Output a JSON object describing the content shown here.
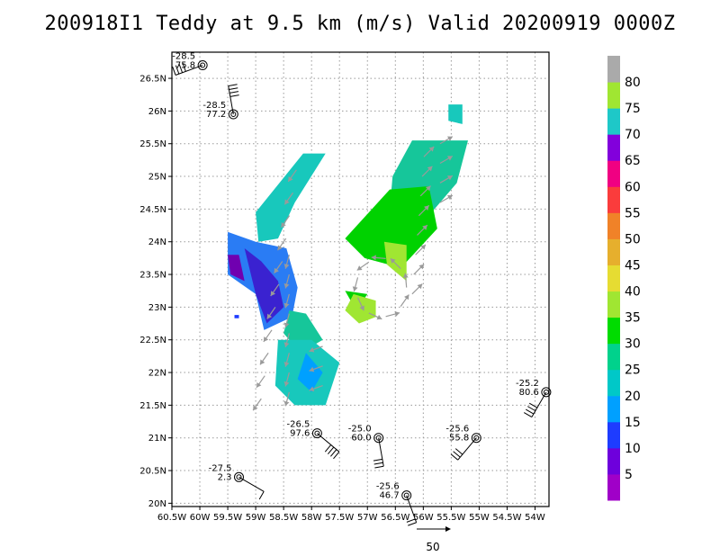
{
  "title": "200918I1 Teddy at 9.5 km (m/s) Valid 20200919 0000Z",
  "chart_data": {
    "type": "wind-vector-map",
    "xlim": [
      -60.5,
      -53.75
    ],
    "ylim": [
      19.95,
      26.9
    ],
    "x_ticks": [
      -60.5,
      -60,
      -59.5,
      -59,
      -58.5,
      -58,
      -57.5,
      -57,
      -56.5,
      -56,
      -55.5,
      -55,
      -54.5,
      -54
    ],
    "x_tick_labels": [
      "60.5W",
      "60W",
      "59.5W",
      "59W",
      "58.5W",
      "58W",
      "57.5W",
      "57W",
      "56.5W",
      "56W",
      "55.5W",
      "55W",
      "54.5W",
      "54W"
    ],
    "y_ticks": [
      20,
      20.5,
      21,
      21.5,
      22,
      22.5,
      23,
      23.5,
      24,
      24.5,
      25,
      25.5,
      26,
      26.5
    ],
    "y_tick_labels": [
      "20N",
      "20.5N",
      "21N",
      "21.5N",
      "22N",
      "22.5N",
      "23N",
      "23.5N",
      "24N",
      "24.5N",
      "25N",
      "25.5N",
      "26N",
      "26.5N"
    ],
    "grid": true,
    "colorbar": {
      "labels": [
        "5",
        "10",
        "15",
        "20",
        "25",
        "30",
        "35",
        "40",
        "45",
        "50",
        "55",
        "60",
        "65",
        "70",
        "75",
        "80"
      ],
      "colors": [
        "#a000c8",
        "#6e00dc",
        "#1e3cff",
        "#00a0ff",
        "#00c8c8",
        "#00d28c",
        "#00dc00",
        "#a0e632",
        "#e6dc32",
        "#e6af2d",
        "#f08228",
        "#fa3c3c",
        "#f00082",
        "#8200dc",
        "#1ec8c8",
        "#a0e632",
        "#aaaaaa"
      ]
    },
    "reference_vector": {
      "label": "50",
      "speed": 50
    },
    "observations": [
      {
        "lon": -59.95,
        "lat": 26.7,
        "temp": "-28.5",
        "speed": "75.8",
        "barb_dir": 200
      },
      {
        "lon": -59.4,
        "lat": 25.95,
        "temp": "-28.5",
        "speed": "77.2",
        "barb_dir": 100
      },
      {
        "lon": -57.9,
        "lat": 21.07,
        "temp": "-26.5",
        "speed": "97.6",
        "barb_dir": 320
      },
      {
        "lon": -56.8,
        "lat": 21.0,
        "temp": "-25.0",
        "speed": "60.0",
        "barb_dir": 280
      },
      {
        "lon": -55.05,
        "lat": 21.0,
        "temp": "-25.6",
        "speed": "55.8",
        "barb_dir": 230
      },
      {
        "lon": -53.8,
        "lat": 21.7,
        "temp": "-25.2",
        "speed": "80.6",
        "barb_dir": 240
      },
      {
        "lon": -59.3,
        "lat": 20.4,
        "temp": "-27.5",
        "speed": "2.3",
        "barb_dir": 330
      },
      {
        "lon": -56.3,
        "lat": 20.12,
        "temp": "-25.6",
        "speed": "46.7",
        "barb_dir": 290
      }
    ]
  }
}
